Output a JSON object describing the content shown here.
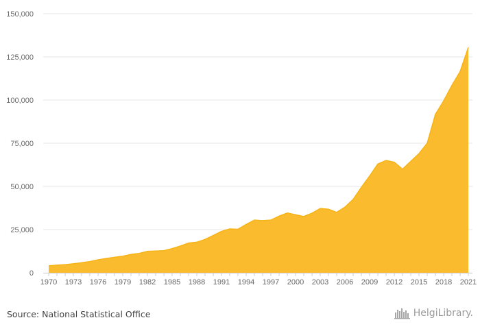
{
  "chart_data": {
    "type": "area",
    "x": [
      1970,
      1971,
      1972,
      1973,
      1974,
      1975,
      1976,
      1977,
      1978,
      1979,
      1980,
      1981,
      1982,
      1983,
      1984,
      1985,
      1986,
      1987,
      1988,
      1989,
      1990,
      1991,
      1992,
      1993,
      1994,
      1995,
      1996,
      1997,
      1998,
      1999,
      2000,
      2001,
      2002,
      2003,
      2004,
      2005,
      2006,
      2007,
      2008,
      2009,
      2010,
      2011,
      2012,
      2013,
      2014,
      2015,
      2016,
      2017,
      2018,
      2019,
      2020,
      2021
    ],
    "series": [
      {
        "values": [
          4000,
          4400,
          4700,
          5200,
          5800,
          6500,
          7500,
          8300,
          9000,
          9600,
          10600,
          11200,
          12400,
          12600,
          12800,
          14000,
          15500,
          17200,
          17700,
          19300,
          21600,
          24000,
          25400,
          25200,
          28000,
          30500,
          30200,
          30500,
          32800,
          34600,
          33600,
          32600,
          34500,
          37200,
          36800,
          35000,
          38000,
          42500,
          49500,
          56000,
          63000,
          65000,
          64000,
          60000,
          64500,
          69000,
          75000,
          91800,
          99500,
          108500,
          116500,
          130500
        ]
      }
    ],
    "x_ticks": [
      "1970",
      "1973",
      "1976",
      "1979",
      "1982",
      "1985",
      "1988",
      "1991",
      "1994",
      "1997",
      "2000",
      "2003",
      "2006",
      "2009",
      "2012",
      "2015",
      "2018",
      "2021"
    ],
    "y_ticks": [
      "0",
      "25,000",
      "50,000",
      "75,000",
      "100,000",
      "125,000",
      "150,000"
    ],
    "ylim": [
      0,
      150000
    ],
    "xlim": [
      1970,
      2021
    ],
    "grid": true,
    "fill_color": "#fabc2e",
    "line_color": "#f6b318"
  },
  "footer": {
    "source": "Source: National Statistical Office",
    "logo_text": "HelgiLibrary."
  },
  "colors": {
    "grid": "#e6e6e6",
    "axis": "#cccccc",
    "text": "#666666"
  }
}
